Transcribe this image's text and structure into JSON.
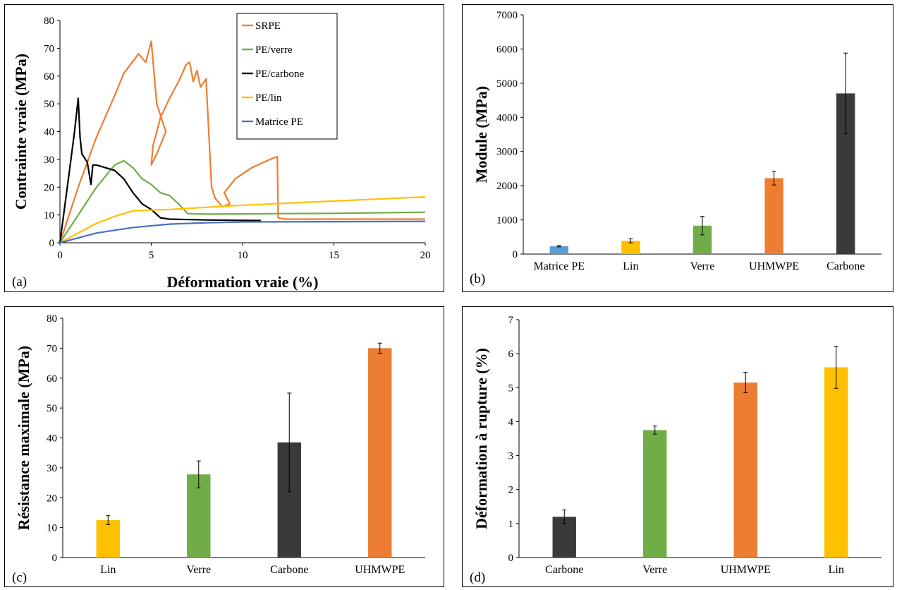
{
  "chart_data": [
    {
      "type": "line",
      "panel_label": "(a)",
      "xlabel": "Déformation vraie (%)",
      "ylabel": "Contrainte vraie (MPa)",
      "xlim": [
        0,
        20
      ],
      "ylim": [
        0,
        80
      ],
      "xticks": [
        "0",
        "5",
        "10",
        "15",
        "20"
      ],
      "yticks": [
        "0",
        "10",
        "20",
        "30",
        "40",
        "50",
        "60",
        "70",
        "80"
      ],
      "legend_position": "top-right",
      "series": [
        {
          "name": "SRPE",
          "color": "#ED7D31",
          "x": [
            0,
            1,
            2,
            3,
            3.5,
            4.3,
            4.7,
            4.9,
            5.0,
            5.1,
            5.3,
            5.8,
            5.3,
            5.0,
            5.1,
            5.5,
            6.0,
            6.5,
            6.9,
            7.1,
            7.3,
            7.5,
            7.7,
            8.0,
            8.3,
            8.5,
            8.9,
            9.3,
            9.0,
            9.6,
            10.5,
            11.5,
            11.9,
            11.95,
            12.3,
            20
          ],
          "y": [
            0,
            20,
            38,
            53,
            61,
            68,
            65,
            70,
            72.5,
            65,
            50,
            40,
            32,
            28,
            35,
            45,
            52,
            58,
            64,
            65,
            58,
            62,
            56,
            59,
            20,
            16,
            13,
            14,
            18,
            23,
            27,
            30,
            31,
            9,
            8.5,
            8.5
          ]
        },
        {
          "name": "PE/verre",
          "color": "#70AD47",
          "x": [
            0,
            1,
            2,
            3,
            3.5,
            4,
            4.5,
            5,
            5.5,
            6,
            6.5,
            7,
            8,
            10,
            12,
            15,
            20
          ],
          "y": [
            0,
            10,
            20,
            28,
            29.5,
            27,
            23,
            21,
            18,
            17,
            14,
            10.5,
            10.3,
            10.4,
            10.5,
            10.6,
            11
          ]
        },
        {
          "name": "PE/carbone",
          "color": "#000000",
          "x": [
            0,
            0.5,
            0.8,
            1.0,
            1.1,
            1.2,
            1.5,
            1.7,
            1.8,
            2.0,
            2.5,
            3.0,
            3.5,
            4.0,
            4.5,
            5.0,
            5.5,
            6.0,
            8.0,
            11.0
          ],
          "y": [
            0,
            25,
            40,
            52,
            38,
            32,
            29,
            21,
            28,
            28,
            27,
            26,
            23,
            18,
            14,
            12,
            9,
            8.5,
            8.2,
            8
          ]
        },
        {
          "name": "PE/lin",
          "color": "#FFC000",
          "x": [
            0,
            1,
            2,
            3,
            4,
            6,
            10,
            15,
            20
          ],
          "y": [
            0,
            3.5,
            7,
            9.5,
            11.5,
            12,
            13.5,
            15,
            16.5
          ]
        },
        {
          "name": "Matrice PE",
          "color": "#4472C4",
          "x": [
            0,
            2,
            4,
            6,
            8,
            10,
            15,
            20
          ],
          "y": [
            0,
            3.5,
            5.5,
            6.7,
            7.2,
            7.5,
            7.6,
            7.7
          ]
        }
      ]
    },
    {
      "type": "bar",
      "panel_label": "(b)",
      "ylabel": "Module (MPa)",
      "ylim": [
        0,
        7000
      ],
      "yticks": [
        "0",
        "1000",
        "2000",
        "3000",
        "4000",
        "5000",
        "6000",
        "7000"
      ],
      "categories": [
        "Matrice PE",
        "Lin",
        "Verre",
        "UHMWPE",
        "Carbone"
      ],
      "values": [
        230,
        390,
        830,
        2220,
        4700
      ],
      "errors": [
        20,
        60,
        270,
        200,
        1180
      ],
      "colors": [
        "#5B9BD5",
        "#FFC000",
        "#70AD47",
        "#ED7D31",
        "#3A3A3A"
      ]
    },
    {
      "type": "bar",
      "panel_label": "(c)",
      "ylabel": "Résistance maximale (MPa)",
      "ylim": [
        0,
        80
      ],
      "yticks": [
        "0",
        "10",
        "20",
        "30",
        "40",
        "50",
        "60",
        "70",
        "80"
      ],
      "categories": [
        "Lin",
        "Verre",
        "Carbone",
        "UHMWPE"
      ],
      "values": [
        12.5,
        27.8,
        38.5,
        70
      ],
      "errors": [
        1.5,
        4.5,
        16.5,
        1.7
      ],
      "colors": [
        "#FFC000",
        "#70AD47",
        "#3A3A3A",
        "#ED7D31"
      ]
    },
    {
      "type": "bar",
      "panel_label": "(d)",
      "ylabel": "Déformation à rupture (%)",
      "ylim": [
        0,
        7
      ],
      "yticks": [
        "0",
        "1",
        "2",
        "3",
        "4",
        "5",
        "6",
        "7"
      ],
      "categories": [
        "Carbone",
        "Verre",
        "UHMWPE",
        "Lin"
      ],
      "values": [
        1.2,
        3.75,
        5.15,
        5.6
      ],
      "errors": [
        0.2,
        0.12,
        0.3,
        0.62
      ],
      "colors": [
        "#3A3A3A",
        "#70AD47",
        "#ED7D31",
        "#FFC000"
      ]
    }
  ]
}
